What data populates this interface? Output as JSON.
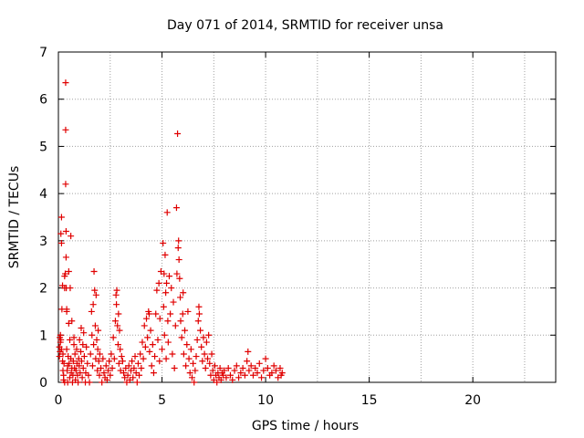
{
  "chart_data": {
    "type": "scatter",
    "title": "Day 071 of 2014, SRMTID for receiver unsa",
    "xlabel": "GPS time / hours",
    "ylabel": "SRMTID / TECUs",
    "xlim": [
      0,
      24
    ],
    "ylim": [
      0,
      7
    ],
    "xticks": [
      0,
      5,
      10,
      15,
      20
    ],
    "yticks": [
      0,
      1,
      2,
      3,
      4,
      5,
      6,
      7
    ],
    "grid": true,
    "marker": "+",
    "series": [
      {
        "name": "SRMTID",
        "color": "#e00000",
        "points": [
          [
            0.05,
            0.55
          ],
          [
            0.05,
            0.75
          ],
          [
            0.07,
            0.95
          ],
          [
            0.08,
            0.65
          ],
          [
            0.1,
            1.0
          ],
          [
            0.1,
            0.85
          ],
          [
            0.12,
            3.15
          ],
          [
            0.12,
            0.9
          ],
          [
            0.15,
            3.5
          ],
          [
            0.15,
            2.95
          ],
          [
            0.15,
            0.7
          ],
          [
            0.17,
            1.55
          ],
          [
            0.2,
            0.45
          ],
          [
            0.2,
            2.05
          ],
          [
            0.22,
            0.25
          ],
          [
            0.22,
            0.6
          ],
          [
            0.25,
            0.05
          ],
          [
            0.25,
            0.15
          ],
          [
            0.27,
            0.4
          ],
          [
            0.3,
            0.0
          ],
          [
            0.3,
            2.0
          ],
          [
            0.3,
            2.25
          ],
          [
            0.33,
            2.3
          ],
          [
            0.35,
            6.35
          ],
          [
            0.35,
            5.35
          ],
          [
            0.35,
            4.2
          ],
          [
            0.37,
            3.2
          ],
          [
            0.37,
            2.65
          ],
          [
            0.38,
            2.0
          ],
          [
            0.4,
            1.55
          ],
          [
            0.4,
            1.5
          ],
          [
            0.4,
            0.7
          ],
          [
            0.42,
            0.25
          ],
          [
            0.45,
            0.0
          ],
          [
            0.45,
            0.35
          ],
          [
            0.47,
            0.55
          ],
          [
            0.5,
            1.25
          ],
          [
            0.5,
            2.35
          ],
          [
            0.52,
            0.4
          ],
          [
            0.55,
            0.9
          ],
          [
            0.55,
            0.1
          ],
          [
            0.57,
            2.0
          ],
          [
            0.6,
            3.1
          ],
          [
            0.6,
            0.5
          ],
          [
            0.62,
            0.2
          ],
          [
            0.65,
            1.3
          ],
          [
            0.65,
            0.3
          ],
          [
            0.68,
            0.0
          ],
          [
            0.7,
            0.15
          ],
          [
            0.72,
            0.45
          ],
          [
            0.75,
            0.8
          ],
          [
            0.75,
            0.95
          ],
          [
            0.78,
            0.3
          ],
          [
            0.8,
            0.6
          ],
          [
            0.82,
            0.05
          ],
          [
            0.85,
            0.25
          ],
          [
            0.88,
            0.7
          ],
          [
            0.9,
            0.4
          ],
          [
            0.92,
            0.15
          ],
          [
            0.95,
            0.0
          ],
          [
            0.98,
            0.5
          ],
          [
            1.0,
            0.35
          ],
          [
            1.02,
            0.9
          ],
          [
            1.05,
            0.2
          ],
          [
            1.08,
            0.65
          ],
          [
            1.1,
            1.15
          ],
          [
            1.12,
            0.45
          ],
          [
            1.15,
            0.1
          ],
          [
            1.18,
            0.8
          ],
          [
            1.2,
            0.3
          ],
          [
            1.22,
            1.05
          ],
          [
            1.25,
            0.55
          ],
          [
            1.3,
            0.0
          ],
          [
            1.32,
            0.2
          ],
          [
            1.35,
            0.75
          ],
          [
            1.4,
            0.4
          ],
          [
            1.45,
            0.15
          ],
          [
            1.5,
            0.0
          ],
          [
            1.55,
            0.6
          ],
          [
            1.6,
            1.5
          ],
          [
            1.62,
            1.0
          ],
          [
            1.65,
            0.35
          ],
          [
            1.68,
            1.65
          ],
          [
            1.7,
            0.8
          ],
          [
            1.72,
            2.35
          ],
          [
            1.75,
            1.95
          ],
          [
            1.78,
            1.2
          ],
          [
            1.8,
            0.5
          ],
          [
            1.82,
            1.85
          ],
          [
            1.85,
            0.9
          ],
          [
            1.88,
            0.25
          ],
          [
            1.9,
            0.7
          ],
          [
            1.92,
            1.1
          ],
          [
            1.95,
            0.45
          ],
          [
            1.98,
            0.15
          ],
          [
            2.0,
            0.6
          ],
          [
            2.05,
            0.3
          ],
          [
            2.1,
            0.0
          ],
          [
            2.15,
            0.5
          ],
          [
            2.2,
            0.2
          ],
          [
            2.25,
            0.1
          ],
          [
            2.3,
            0.35
          ],
          [
            2.35,
            0.05
          ],
          [
            2.4,
            0.25
          ],
          [
            2.45,
            0.45
          ],
          [
            2.5,
            0.15
          ],
          [
            2.55,
            0.6
          ],
          [
            2.6,
            0.3
          ],
          [
            2.65,
            0.95
          ],
          [
            2.7,
            0.5
          ],
          [
            2.75,
            1.3
          ],
          [
            2.78,
            1.85
          ],
          [
            2.8,
            1.65
          ],
          [
            2.82,
            1.95
          ],
          [
            2.85,
            1.2
          ],
          [
            2.88,
            0.8
          ],
          [
            2.9,
            1.45
          ],
          [
            2.92,
            0.4
          ],
          [
            2.95,
            1.1
          ],
          [
            2.98,
            0.7
          ],
          [
            3.0,
            0.25
          ],
          [
            3.05,
            0.55
          ],
          [
            3.1,
            0.45
          ],
          [
            3.15,
            0.2
          ],
          [
            3.2,
            0.1
          ],
          [
            3.25,
            0.3
          ],
          [
            3.3,
            0.0
          ],
          [
            3.35,
            0.15
          ],
          [
            3.4,
            0.35
          ],
          [
            3.45,
            0.05
          ],
          [
            3.5,
            0.25
          ],
          [
            3.55,
            0.45
          ],
          [
            3.6,
            0.1
          ],
          [
            3.65,
            0.3
          ],
          [
            3.7,
            0.55
          ],
          [
            3.75,
            0.2
          ],
          [
            3.8,
            0.0
          ],
          [
            3.85,
            0.4
          ],
          [
            3.9,
            0.15
          ],
          [
            3.95,
            0.6
          ],
          [
            4.0,
            0.3
          ],
          [
            4.05,
            0.85
          ],
          [
            4.1,
            0.5
          ],
          [
            4.15,
            1.2
          ],
          [
            4.2,
            0.75
          ],
          [
            4.25,
            1.35
          ],
          [
            4.3,
            0.95
          ],
          [
            4.35,
            1.5
          ],
          [
            4.38,
            1.45
          ],
          [
            4.4,
            0.65
          ],
          [
            4.45,
            1.1
          ],
          [
            4.5,
            0.35
          ],
          [
            4.55,
            0.8
          ],
          [
            4.6,
            0.2
          ],
          [
            4.65,
            0.55
          ],
          [
            4.7,
            1.45
          ],
          [
            4.75,
            1.95
          ],
          [
            4.8,
            0.9
          ],
          [
            4.85,
            2.1
          ],
          [
            4.88,
            0.45
          ],
          [
            4.9,
            1.35
          ],
          [
            4.95,
            2.35
          ],
          [
            5.0,
            0.7
          ],
          [
            5.05,
            2.95
          ],
          [
            5.08,
            1.6
          ],
          [
            5.1,
            2.3
          ],
          [
            5.12,
            1.0
          ],
          [
            5.15,
            2.7
          ],
          [
            5.18,
            1.9
          ],
          [
            5.2,
            0.5
          ],
          [
            5.22,
            2.1
          ],
          [
            5.25,
            3.6
          ],
          [
            5.28,
            1.3
          ],
          [
            5.3,
            0.85
          ],
          [
            5.35,
            2.25
          ],
          [
            5.4,
            1.45
          ],
          [
            5.45,
            2.0
          ],
          [
            5.5,
            0.6
          ],
          [
            5.55,
            1.7
          ],
          [
            5.6,
            0.3
          ],
          [
            5.65,
            1.2
          ],
          [
            5.7,
            3.7
          ],
          [
            5.72,
            2.3
          ],
          [
            5.75,
            5.27
          ],
          [
            5.78,
            2.85
          ],
          [
            5.8,
            3.0
          ],
          [
            5.82,
            2.6
          ],
          [
            5.85,
            2.2
          ],
          [
            5.88,
            1.8
          ],
          [
            5.9,
            1.3
          ],
          [
            5.95,
            0.95
          ],
          [
            6.0,
            1.45
          ],
          [
            6.02,
            1.9
          ],
          [
            6.05,
            0.6
          ],
          [
            6.1,
            1.1
          ],
          [
            6.15,
            0.35
          ],
          [
            6.2,
            0.8
          ],
          [
            6.25,
            1.5
          ],
          [
            6.3,
            0.5
          ],
          [
            6.35,
            0.2
          ],
          [
            6.4,
            0.7
          ],
          [
            6.45,
            0.1
          ],
          [
            6.5,
            0.4
          ],
          [
            6.55,
            0.0
          ],
          [
            6.6,
            0.25
          ],
          [
            6.65,
            0.55
          ],
          [
            6.7,
            0.9
          ],
          [
            6.75,
            1.3
          ],
          [
            6.78,
            1.6
          ],
          [
            6.8,
            1.45
          ],
          [
            6.85,
            1.1
          ],
          [
            6.9,
            0.75
          ],
          [
            6.95,
            0.45
          ],
          [
            7.0,
            0.95
          ],
          [
            7.05,
            0.6
          ],
          [
            7.1,
            0.3
          ],
          [
            7.15,
            0.85
          ],
          [
            7.2,
            0.5
          ],
          [
            7.25,
            1.0
          ],
          [
            7.3,
            0.4
          ],
          [
            7.35,
            0.15
          ],
          [
            7.4,
            0.6
          ],
          [
            7.45,
            0.25
          ],
          [
            7.5,
            0.05
          ],
          [
            7.55,
            0.35
          ],
          [
            7.6,
            0.15
          ],
          [
            7.65,
            0.0
          ],
          [
            7.7,
            0.2
          ],
          [
            7.75,
            0.1
          ],
          [
            7.8,
            0.3
          ],
          [
            7.85,
            0.05
          ],
          [
            7.9,
            0.2
          ],
          [
            7.95,
            0.15
          ],
          [
            8.0,
            0.25
          ],
          [
            8.1,
            0.1
          ],
          [
            8.2,
            0.3
          ],
          [
            8.3,
            0.15
          ],
          [
            8.4,
            0.05
          ],
          [
            8.5,
            0.25
          ],
          [
            8.6,
            0.35
          ],
          [
            8.7,
            0.1
          ],
          [
            8.8,
            0.2
          ],
          [
            8.9,
            0.3
          ],
          [
            9.0,
            0.15
          ],
          [
            9.1,
            0.45
          ],
          [
            9.15,
            0.65
          ],
          [
            9.2,
            0.25
          ],
          [
            9.3,
            0.35
          ],
          [
            9.4,
            0.15
          ],
          [
            9.5,
            0.3
          ],
          [
            9.6,
            0.2
          ],
          [
            9.7,
            0.4
          ],
          [
            9.8,
            0.1
          ],
          [
            9.9,
            0.25
          ],
          [
            10.0,
            0.5
          ],
          [
            10.1,
            0.3
          ],
          [
            10.2,
            0.15
          ],
          [
            10.3,
            0.2
          ],
          [
            10.4,
            0.35
          ],
          [
            10.5,
            0.25
          ],
          [
            10.6,
            0.1
          ],
          [
            10.7,
            0.3
          ],
          [
            10.75,
            0.15
          ],
          [
            10.8,
            0.2
          ]
        ]
      }
    ]
  }
}
